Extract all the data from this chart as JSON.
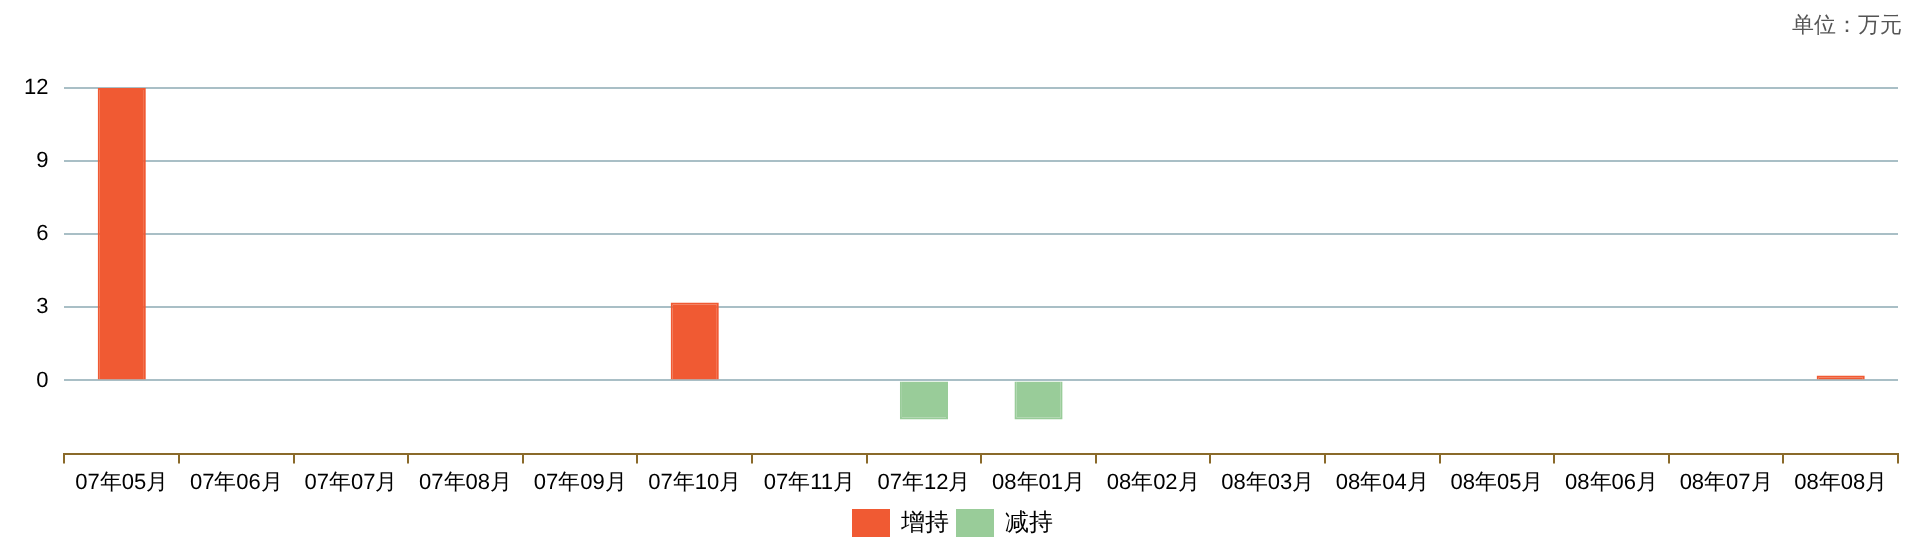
{
  "chart_data": {
    "type": "bar",
    "stacked": true,
    "categories": [
      "07年05月",
      "07年06月",
      "07年07月",
      "07年08月",
      "07年09月",
      "07年10月",
      "07年11月",
      "07年12月",
      "08年01月",
      "08年02月",
      "08年03月",
      "08年04月",
      "08年05月",
      "08年06月",
      "08年07月",
      "08年08月"
    ],
    "series": [
      {
        "name": "增持",
        "color": "#f05a33",
        "values": [
          12,
          null,
          null,
          null,
          null,
          3.2,
          null,
          null,
          null,
          null,
          null,
          null,
          null,
          null,
          null,
          0.2
        ]
      },
      {
        "name": "减持",
        "color": "#99cc99",
        "values": [
          null,
          null,
          null,
          null,
          null,
          null,
          null,
          -1.6,
          -1.6,
          null,
          null,
          null,
          null,
          null,
          null,
          null
        ]
      }
    ],
    "ylim": [
      -3,
      12
    ],
    "yticks": [
      0,
      3,
      6,
      9,
      12
    ],
    "grid": "y",
    "legend": "bottom",
    "annotations": [
      "单位：万元"
    ]
  }
}
